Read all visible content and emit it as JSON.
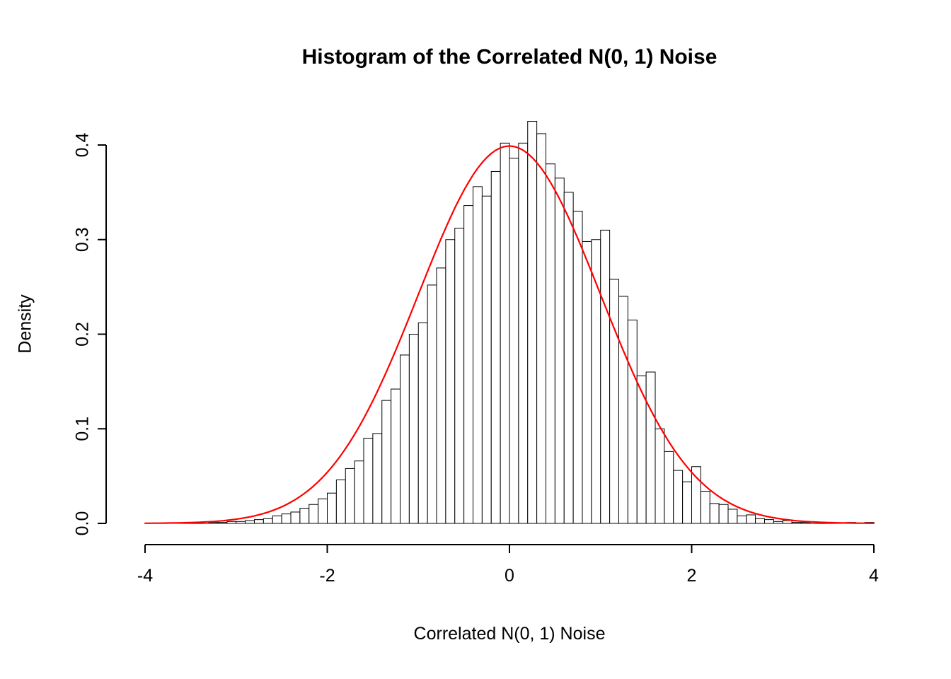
{
  "chart_data": {
    "type": "bar",
    "subtype": "histogram",
    "title": "Histogram of the Correlated N(0, 1) Noise",
    "xlabel": "Correlated N(0, 1) Noise",
    "ylabel": "Density",
    "xlim": [
      -4,
      4
    ],
    "ylim": [
      0,
      0.4
    ],
    "grid": false,
    "legend": false,
    "x_ticks": {
      "values": [
        -4,
        -2,
        0,
        2,
        4
      ],
      "labels": [
        "-4",
        "-2",
        "0",
        "2",
        "4"
      ]
    },
    "y_ticks": {
      "values": [
        0,
        0.1,
        0.2,
        0.3,
        0.4
      ],
      "labels": [
        "0.0",
        "0.1",
        "0.2",
        "0.3",
        "0.4"
      ]
    },
    "bar_fill": "#FFFFFF",
    "bar_stroke": "#000000",
    "bins": {
      "start": -4.0,
      "width": 0.1,
      "densities": [
        0,
        0,
        0,
        0,
        0,
        0.001,
        0,
        0.001,
        0.001,
        0.002,
        0.002,
        0.003,
        0.004,
        0.005,
        0.008,
        0.01,
        0.012,
        0.016,
        0.02,
        0.026,
        0.032,
        0.046,
        0.058,
        0.066,
        0.09,
        0.095,
        0.13,
        0.142,
        0.178,
        0.2,
        0.212,
        0.252,
        0.27,
        0.3,
        0.312,
        0.336,
        0.356,
        0.346,
        0.372,
        0.402,
        0.386,
        0.402,
        0.425,
        0.412,
        0.38,
        0.365,
        0.35,
        0.33,
        0.298,
        0.3,
        0.31,
        0.258,
        0.24,
        0.215,
        0.156,
        0.16,
        0.1,
        0.076,
        0.056,
        0.044,
        0.06,
        0.034,
        0.021,
        0.02,
        0.015,
        0.008,
        0.009,
        0.005,
        0.004,
        0.002,
        0.003,
        0.001,
        0.001,
        0,
        0,
        0,
        0,
        0.001,
        0,
        0.001
      ]
    },
    "overlay_curve": {
      "name": "standard-normal-pdf",
      "formula": "dnorm(x, mean=0, sd=1)",
      "mean": 0,
      "sd": 1,
      "color": "#FF0000"
    }
  }
}
